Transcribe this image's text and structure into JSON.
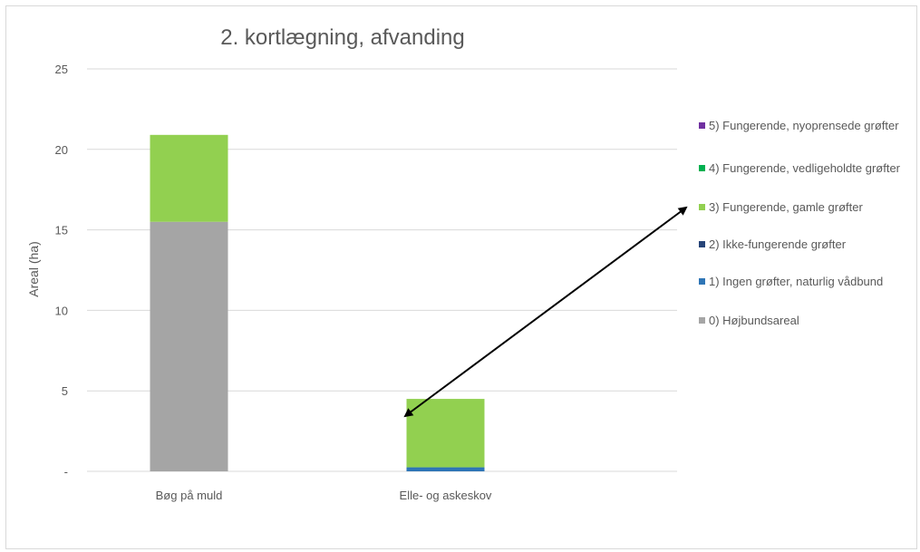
{
  "chart_data": {
    "type": "bar",
    "stacked": true,
    "title": "2. kortlægning, afvanding",
    "ylabel": "Areal (ha)",
    "xlabel": "",
    "ylim": [
      0,
      25
    ],
    "yticks": [
      0,
      5,
      10,
      15,
      20,
      25
    ],
    "ytick_labels": [
      "-",
      "5",
      "10",
      "15",
      "20",
      "25"
    ],
    "grid": true,
    "legend_position": "right",
    "categories": [
      "Bøg på muld",
      "Elle- og askeskov"
    ],
    "series": [
      {
        "name": "0) Højbundsareal",
        "color": "#a5a5a5",
        "values": [
          15.5,
          0
        ]
      },
      {
        "name": "1) Ingen grøfter, naturlig vådbund",
        "color": "#2e75b6",
        "values": [
          0,
          0.25
        ]
      },
      {
        "name": "2) Ikke-fungerende grøfter",
        "color": "#264478",
        "values": [
          0,
          0
        ]
      },
      {
        "name": "3) Fungerende, gamle grøfter",
        "color": "#92d050",
        "values": [
          5.4,
          4.25
        ]
      },
      {
        "name": "4) Fungerende, vedligeholdte grøfter",
        "color": "#00b050",
        "values": [
          0,
          0
        ]
      },
      {
        "name": "5) Fungerende, nyoprensede grøfter",
        "color": "#7030a0",
        "values": [
          0,
          0
        ]
      }
    ],
    "annotation": {
      "type": "double-arrow",
      "from": "3) Fungerende, gamle grøfter",
      "to": "Elle- og askeskov"
    }
  },
  "legend": {
    "items": [
      {
        "label": "5) Fungerende, nyoprensede grøfter",
        "color": "#7030a0",
        "icon": "legend-swatch-icon"
      },
      {
        "label": "4) Fungerende, vedligeholdte grøfter",
        "color": "#00b050",
        "icon": "legend-swatch-icon"
      },
      {
        "label": "3) Fungerende, gamle grøfter",
        "color": "#92d050",
        "icon": "legend-swatch-icon"
      },
      {
        "label": "2) Ikke-fungerende grøfter",
        "color": "#264478",
        "icon": "legend-swatch-icon"
      },
      {
        "label": "1) Ingen grøfter, naturlig vådbund",
        "color": "#2e75b6",
        "icon": "legend-swatch-icon"
      },
      {
        "label": "0) Højbundsareal",
        "color": "#a5a5a5",
        "icon": "legend-swatch-icon"
      }
    ]
  }
}
